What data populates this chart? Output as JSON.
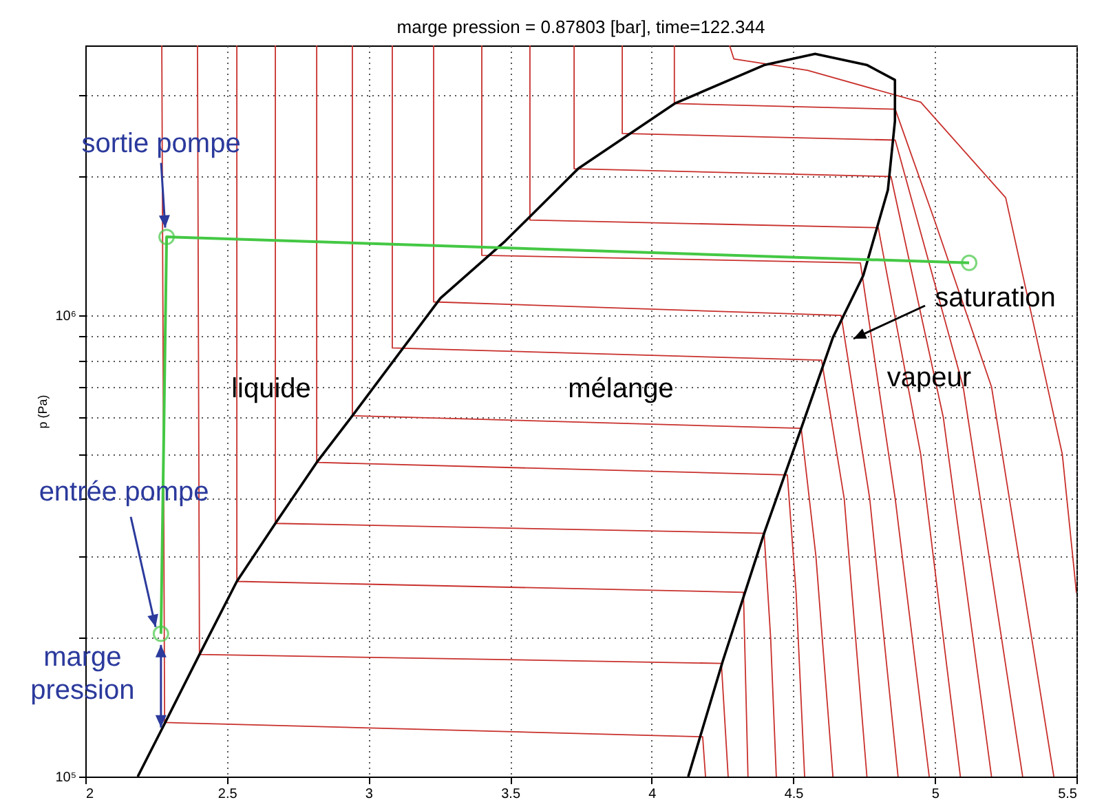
{
  "chart_data": {
    "type": "line",
    "title": "marge pression = 0.87803 [bar], time=122.344",
    "ylabel": "p (Pa)",
    "log": "y",
    "grid": true,
    "xlim": [
      2,
      5.5
    ],
    "xticks": [
      2,
      2.5,
      3,
      3.5,
      4,
      4.5,
      5,
      5.5
    ],
    "ylim": [
      100000,
      3850000
    ],
    "yticks": [
      {
        "value": 100000,
        "label": "10⁵"
      },
      {
        "value": 200000,
        "label": null
      },
      {
        "value": 300000,
        "label": null
      },
      {
        "value": 400000,
        "label": null
      },
      {
        "value": 500000,
        "label": null
      },
      {
        "value": 600000,
        "label": null
      },
      {
        "value": 700000,
        "label": null
      },
      {
        "value": 800000,
        "label": null
      },
      {
        "value": 900000,
        "label": null
      },
      {
        "value": 1000000,
        "label": "10⁶"
      },
      {
        "value": 2000000,
        "label": null
      },
      {
        "value": 3000000,
        "label": null
      }
    ],
    "series": [
      {
        "color": "#c8302c",
        "x": [
          2.27,
          2.28,
          4.18,
          4.19
        ],
        "values": [
          3850000,
          131000,
          122000,
          100000
        ]
      },
      {
        "color": "#c8302c",
        "x": [
          2.396,
          2.403,
          4.246,
          4.27
        ],
        "values": [
          3850000,
          184000,
          176000,
          100000
        ]
      },
      {
        "color": "#c8302c",
        "x": [
          2.535,
          2.535,
          4.324,
          4.34
        ],
        "values": [
          3850000,
          265000,
          251000,
          100000
        ]
      },
      {
        "color": "#c8302c",
        "x": [
          2.671,
          2.671,
          4.397,
          4.42,
          4.44
        ],
        "values": [
          3850000,
          354000,
          337000,
          200000,
          100000
        ]
      },
      {
        "color": "#c8302c",
        "x": [
          2.817,
          2.817,
          4.479,
          4.51,
          4.54
        ],
        "values": [
          3850000,
          480000,
          451000,
          250000,
          100000
        ]
      },
      {
        "color": "#c8302c",
        "x": [
          2.943,
          2.943,
          4.528,
          4.58,
          4.64
        ],
        "values": [
          3850000,
          606000,
          569000,
          300000,
          100000
        ]
      },
      {
        "color": "#c8302c",
        "x": [
          3.084,
          3.084,
          4.6,
          4.68,
          4.76
        ],
        "values": [
          3850000,
          850000,
          800000,
          400000,
          100000
        ]
      },
      {
        "color": "#c8302c",
        "x": [
          3.23,
          3.23,
          4.669,
          4.77,
          4.87
        ],
        "values": [
          3850000,
          1070000,
          1000000,
          400000,
          100000
        ]
      },
      {
        "color": "#c8302c",
        "x": [
          3.4,
          3.4,
          4.737,
          4.86,
          4.98
        ],
        "values": [
          3850000,
          1350000,
          1300000,
          400000,
          100000
        ]
      },
      {
        "color": "#c8302c",
        "x": [
          3.57,
          3.57,
          4.8,
          4.95,
          5.09
        ],
        "values": [
          3850000,
          1610000,
          1550000,
          500000,
          100000
        ]
      },
      {
        "color": "#c8302c",
        "x": [
          3.726,
          3.726,
          4.845,
          5.03,
          5.2
        ],
        "values": [
          3850000,
          2080000,
          2000000,
          600000,
          100000
        ]
      },
      {
        "color": "#c8302c",
        "x": [
          3.896,
          3.896,
          4.86,
          5.1,
          5.31
        ],
        "values": [
          3850000,
          2480000,
          2400000,
          700000,
          100000
        ]
      },
      {
        "color": "#c8302c",
        "x": [
          4.08,
          4.08,
          4.86,
          5.0,
          5.2,
          5.42
        ],
        "values": [
          3850000,
          2880000,
          2800000,
          1600000,
          700000,
          100000
        ]
      },
      {
        "color": "#c8302c",
        "x": [
          4.275,
          4.29,
          4.55,
          4.95,
          5.25,
          5.45,
          5.5
        ],
        "values": [
          3850000,
          3600000,
          3400000,
          2900000,
          1800000,
          500000,
          250000
        ]
      },
      {
        "color": "#000000",
        "x": [
          2.185,
          2.282,
          2.403,
          2.535,
          2.671,
          2.817,
          2.943,
          3.254,
          3.483,
          3.74,
          4.081,
          4.397,
          4.577,
          4.761,
          4.859,
          4.859,
          4.834,
          4.747,
          4.64,
          4.528,
          4.397,
          4.251,
          4.129
        ],
        "values": [
          100000,
          131000,
          184000,
          265000,
          354000,
          480000,
          606000,
          1090000,
          1450000,
          2080000,
          2880000,
          3490000,
          3690000,
          3490000,
          3240000,
          2640000,
          1870000,
          1220000,
          896000,
          569000,
          337000,
          178000,
          100000
        ]
      },
      {
        "color": "#44c844",
        "marker": "circle",
        "x": [
          2.267,
          2.287,
          5.121
        ],
        "values": [
          204000,
          1480000,
          1300000
        ]
      }
    ],
    "annotations": [
      {
        "text": "sortie pompe",
        "x": 2.282,
        "y": 1550000
      },
      {
        "text": "entrée pompe",
        "x": 2.248,
        "y": 211000
      },
      {
        "text": "marge pression",
        "x": 2.267,
        "y": 157000
      },
      "saturation",
      "liquide",
      "mélange",
      "vapeur"
    ]
  }
}
